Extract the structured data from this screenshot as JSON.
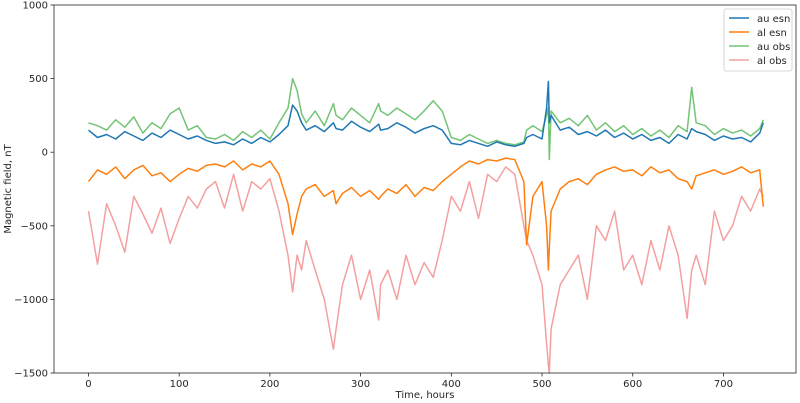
{
  "chart_data": {
    "type": "line",
    "title": "",
    "xlabel": "Time, hours",
    "ylabel": "Magnetic field, nT",
    "xlim": [
      -38,
      780
    ],
    "ylim": [
      -1500,
      1000
    ],
    "xticks": [
      0,
      100,
      200,
      300,
      400,
      500,
      600,
      700
    ],
    "xtick_labels": [
      "0",
      "100",
      "200",
      "300",
      "400",
      "500",
      "600",
      "700"
    ],
    "yticks": [
      1000,
      500,
      0,
      -500,
      -1000,
      -1500
    ],
    "ytick_labels": [
      "1000",
      "500",
      "0",
      "−500",
      "−1000",
      "−1500"
    ],
    "grid": false,
    "legend_position": "upper right",
    "x": [
      0,
      10,
      20,
      30,
      40,
      50,
      60,
      70,
      80,
      90,
      100,
      110,
      120,
      130,
      140,
      150,
      160,
      170,
      180,
      190,
      200,
      210,
      220,
      225,
      230,
      235,
      240,
      250,
      260,
      270,
      273,
      280,
      290,
      300,
      310,
      320,
      322,
      330,
      340,
      350,
      360,
      370,
      380,
      390,
      400,
      410,
      420,
      430,
      440,
      450,
      460,
      470,
      480,
      483,
      490,
      500,
      505,
      507,
      508,
      510,
      520,
      530,
      540,
      550,
      560,
      570,
      580,
      590,
      600,
      610,
      620,
      630,
      640,
      650,
      660,
      665,
      670,
      680,
      690,
      700,
      710,
      720,
      730,
      740,
      744
    ],
    "series": [
      {
        "name": "au esn",
        "color": "#1f77b4",
        "values": [
          150,
          100,
          120,
          90,
          140,
          110,
          80,
          130,
          100,
          150,
          120,
          90,
          110,
          80,
          60,
          70,
          50,
          90,
          60,
          100,
          70,
          120,
          180,
          320,
          280,
          200,
          150,
          180,
          140,
          200,
          160,
          150,
          210,
          170,
          140,
          190,
          150,
          160,
          200,
          170,
          130,
          160,
          180,
          150,
          60,
          50,
          80,
          60,
          40,
          70,
          50,
          40,
          60,
          100,
          120,
          90,
          300,
          480,
          200,
          250,
          150,
          170,
          120,
          140,
          110,
          150,
          100,
          130,
          90,
          120,
          80,
          100,
          60,
          120,
          90,
          160,
          140,
          120,
          80,
          110,
          90,
          100,
          70,
          130,
          200
        ]
      },
      {
        "name": "al esn",
        "color": "#ff7f0e",
        "values": [
          -200,
          -120,
          -150,
          -100,
          -180,
          -120,
          -90,
          -160,
          -140,
          -200,
          -150,
          -110,
          -130,
          -90,
          -80,
          -100,
          -60,
          -120,
          -80,
          -100,
          -60,
          -150,
          -350,
          -560,
          -420,
          -300,
          -250,
          -220,
          -300,
          -260,
          -350,
          -280,
          -240,
          -300,
          -260,
          -320,
          -300,
          -250,
          -280,
          -220,
          -300,
          -240,
          -260,
          -200,
          -150,
          -100,
          -60,
          -80,
          -50,
          -60,
          -40,
          -50,
          -200,
          -630,
          -300,
          -200,
          -500,
          -800,
          -650,
          -400,
          -250,
          -200,
          -180,
          -220,
          -150,
          -120,
          -100,
          -130,
          -120,
          -160,
          -100,
          -140,
          -120,
          -180,
          -200,
          -250,
          -160,
          -140,
          -120,
          -150,
          -130,
          -100,
          -140,
          -120,
          -370
        ]
      },
      {
        "name": "au obs",
        "color": "#74c476",
        "values": [
          200,
          180,
          150,
          220,
          170,
          240,
          130,
          200,
          160,
          260,
          300,
          150,
          180,
          100,
          90,
          120,
          80,
          140,
          100,
          150,
          90,
          200,
          300,
          500,
          420,
          260,
          200,
          280,
          180,
          330,
          250,
          220,
          300,
          250,
          200,
          330,
          280,
          250,
          300,
          260,
          220,
          280,
          350,
          280,
          100,
          80,
          120,
          90,
          60,
          80,
          60,
          50,
          70,
          150,
          180,
          140,
          250,
          300,
          -50,
          280,
          200,
          230,
          180,
          250,
          150,
          200,
          140,
          180,
          120,
          160,
          110,
          150,
          100,
          180,
          140,
          440,
          200,
          180,
          120,
          160,
          130,
          150,
          110,
          160,
          220
        ]
      },
      {
        "name": "al obs",
        "color": "#f4a0a0",
        "values": [
          -400,
          -760,
          -350,
          -500,
          -680,
          -300,
          -420,
          -550,
          -380,
          -620,
          -450,
          -300,
          -380,
          -250,
          -200,
          -380,
          -150,
          -400,
          -200,
          -250,
          -180,
          -400,
          -700,
          -950,
          -700,
          -800,
          -600,
          -800,
          -1000,
          -1340,
          -1200,
          -900,
          -700,
          -1000,
          -800,
          -1140,
          -900,
          -800,
          -1000,
          -700,
          -900,
          -750,
          -850,
          -600,
          -300,
          -400,
          -200,
          -450,
          -150,
          -200,
          -100,
          -150,
          -500,
          -600,
          -700,
          -900,
          -1300,
          -1450,
          -1500,
          -1200,
          -900,
          -800,
          -700,
          -1000,
          -500,
          -600,
          -400,
          -800,
          -700,
          -900,
          -600,
          -800,
          -500,
          -700,
          -1130,
          -800,
          -700,
          -900,
          -400,
          -600,
          -500,
          -300,
          -400,
          -250,
          -300
        ]
      }
    ]
  }
}
